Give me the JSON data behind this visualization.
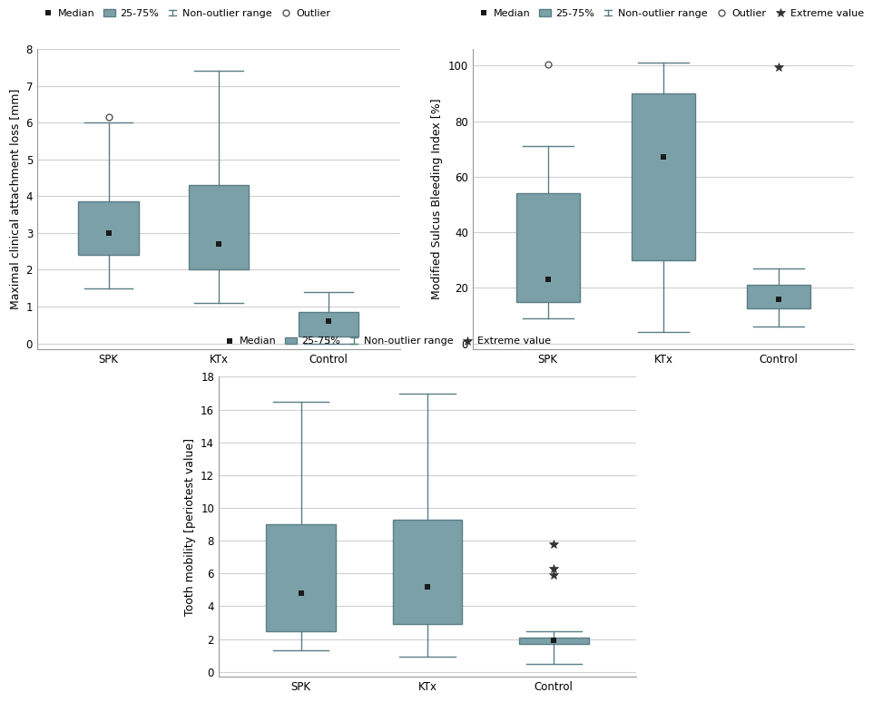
{
  "box_color": "#7ca0a8",
  "box_edgecolor": "#5a7e86",
  "median_color": "#1a1a1a",
  "whisker_color": "#5a7e86",
  "background_color": "#ffffff",
  "grid_color": "#d0d0d0",
  "text_color": "#000000",
  "spine_color": "#999999",
  "plot1": {
    "ylabel": "Maximal clinical attachment loss [mm]",
    "ylim": [
      -0.15,
      8
    ],
    "yticks": [
      0,
      1,
      2,
      3,
      4,
      5,
      6,
      7,
      8
    ],
    "categories": [
      "SPK",
      "KTx",
      "Control"
    ],
    "medians": [
      3.0,
      2.7,
      0.6
    ],
    "q1": [
      2.4,
      2.0,
      0.2
    ],
    "q3": [
      3.85,
      4.3,
      0.85
    ],
    "whisker_low": [
      1.5,
      1.1,
      0.0
    ],
    "whisker_high": [
      6.0,
      7.4,
      1.4
    ],
    "outliers": [
      [
        0,
        6.15
      ]
    ],
    "extreme_values": [],
    "legend": [
      "Median",
      "25-75%",
      "Non-outlier range",
      "Outlier"
    ]
  },
  "plot2": {
    "ylabel": "Modified Sulcus Bleeding Index [%]",
    "ylim": [
      -2,
      106
    ],
    "yticks": [
      0,
      20,
      40,
      60,
      80,
      100
    ],
    "categories": [
      "SPK",
      "KTx",
      "Control"
    ],
    "medians": [
      23.0,
      67.0,
      16.0
    ],
    "q1": [
      15.0,
      30.0,
      12.5
    ],
    "q3": [
      54.0,
      90.0,
      21.0
    ],
    "whisker_low": [
      9.0,
      4.0,
      6.0
    ],
    "whisker_high": [
      71.0,
      101.0,
      27.0
    ],
    "outliers": [
      [
        0,
        100.5
      ]
    ],
    "extreme_values": [
      [
        2,
        99.5
      ]
    ],
    "legend": [
      "Median",
      "25-75%",
      "Non-outlier range",
      "Outlier",
      "Extreme value"
    ]
  },
  "plot3": {
    "ylabel": "Tooth mobility [periotest value]",
    "ylim": [
      -0.3,
      18
    ],
    "yticks": [
      0,
      2,
      4,
      6,
      8,
      10,
      12,
      14,
      16,
      18
    ],
    "categories": [
      "SPK",
      "KTx",
      "Control"
    ],
    "medians": [
      4.8,
      5.2,
      1.9
    ],
    "q1": [
      2.5,
      2.9,
      1.7
    ],
    "q3": [
      9.0,
      9.3,
      2.1
    ],
    "whisker_low": [
      1.3,
      0.9,
      0.5
    ],
    "whisker_high": [
      16.5,
      17.0,
      2.5
    ],
    "outliers": [],
    "extreme_values": [
      [
        2,
        7.8
      ],
      [
        2,
        6.3
      ],
      [
        2,
        5.9
      ]
    ],
    "legend": [
      "Median",
      "25-75%",
      "Non-outlier range",
      "Extreme value"
    ]
  },
  "font_size": 9,
  "legend_font_size": 8,
  "axis_label_font_size": 9,
  "tick_font_size": 8.5,
  "box_width": 0.55,
  "cap_ratio": 0.4
}
